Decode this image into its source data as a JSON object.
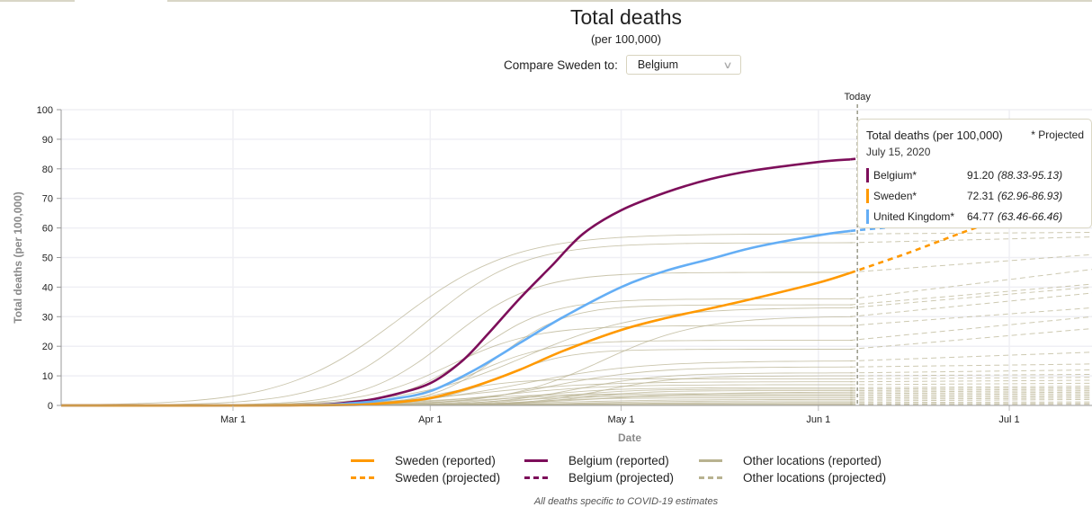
{
  "header": {
    "title": "Total deaths",
    "subtitle": "(per 100,000)",
    "compare_label": "Compare Sweden to:",
    "compare_selected": "Belgium",
    "chevron_icon": "chevron-down-icon"
  },
  "colors": {
    "sweden": "#ff9900",
    "belgium": "#7d0e5a",
    "uk": "#64aef5",
    "other": "#b8b290",
    "today_line": "#999988",
    "grid": "#efeff4"
  },
  "tooltip": {
    "title": "Total deaths (per 100,000)",
    "projected_note": "* Projected",
    "date": "July 15, 2020",
    "rows": [
      {
        "name": "Belgium*",
        "value": "91.20",
        "ci": "(88.33-95.13)",
        "color": "#7d0e5a"
      },
      {
        "name": "Sweden*",
        "value": "72.31",
        "ci": "(62.96-86.93)",
        "color": "#ff9900"
      },
      {
        "name": "United Kingdom*",
        "value": "64.77",
        "ci": "(63.46-66.46)",
        "color": "#64aef5"
      }
    ]
  },
  "legend": [
    {
      "label": "Sweden (reported)",
      "color": "#ff9900",
      "style": "solid"
    },
    {
      "label": "Belgium (reported)",
      "color": "#7d0e5a",
      "style": "solid"
    },
    {
      "label": "Other locations (reported)",
      "color": "#b8b290",
      "style": "solid"
    },
    {
      "label": "Sweden (projected)",
      "color": "#ff9900",
      "style": "dashed"
    },
    {
      "label": "Belgium (projected)",
      "color": "#7d0e5a",
      "style": "dashed"
    },
    {
      "label": "Other locations (projected)",
      "color": "#b8b290",
      "style": "dashed"
    }
  ],
  "footnote": "All deaths specific to COVID-19 estimates",
  "chart_data": {
    "type": "line",
    "title": "Total deaths",
    "subtitle": "(per 100,000)",
    "xlabel": "Date",
    "ylabel": "Total deaths (per 100,000)",
    "ylim": [
      0,
      100
    ],
    "yticks": [
      0,
      10,
      20,
      30,
      40,
      50,
      60,
      70,
      80,
      90,
      100
    ],
    "xlim": [
      "2020-02-03",
      "2020-07-14"
    ],
    "xticks": [
      {
        "date": "2020-03-01",
        "label": "Mar 1"
      },
      {
        "date": "2020-04-01",
        "label": "Apr 1"
      },
      {
        "date": "2020-05-01",
        "label": "May 1"
      },
      {
        "date": "2020-06-01",
        "label": "Jun 1"
      },
      {
        "date": "2020-07-01",
        "label": "Jul 1"
      }
    ],
    "grid": true,
    "today": {
      "date": "2020-06-06",
      "label": "Today"
    },
    "legend_position": "bottom",
    "series": [
      {
        "name": "Belgium",
        "key": "belgium",
        "reported": [
          [
            "2020-02-03",
            0
          ],
          [
            "2020-03-10",
            0.05
          ],
          [
            "2020-03-20",
            1.2
          ],
          [
            "2020-03-26",
            3.5
          ],
          [
            "2020-04-01",
            7.5
          ],
          [
            "2020-04-06",
            15
          ],
          [
            "2020-04-10",
            24
          ],
          [
            "2020-04-15",
            36
          ],
          [
            "2020-04-20",
            47
          ],
          [
            "2020-04-25",
            58
          ],
          [
            "2020-05-01",
            66
          ],
          [
            "2020-05-08",
            72
          ],
          [
            "2020-05-15",
            76.5
          ],
          [
            "2020-05-22",
            79.5
          ],
          [
            "2020-06-01",
            82.3
          ],
          [
            "2020-06-06",
            83.2
          ]
        ],
        "projected": [
          [
            "2020-06-06",
            83.2
          ],
          [
            "2020-06-20",
            86.5
          ],
          [
            "2020-07-01",
            89
          ],
          [
            "2020-07-15",
            91.2
          ]
        ]
      },
      {
        "name": "United Kingdom",
        "key": "uk",
        "reported": [
          [
            "2020-02-03",
            0
          ],
          [
            "2020-03-10",
            0.05
          ],
          [
            "2020-03-20",
            0.8
          ],
          [
            "2020-03-26",
            2.2
          ],
          [
            "2020-04-01",
            4.8
          ],
          [
            "2020-04-08",
            12
          ],
          [
            "2020-04-15",
            21
          ],
          [
            "2020-04-22",
            30
          ],
          [
            "2020-05-01",
            40
          ],
          [
            "2020-05-08",
            45.5
          ],
          [
            "2020-05-15",
            49.5
          ],
          [
            "2020-05-22",
            53.5
          ],
          [
            "2020-06-01",
            57.5
          ],
          [
            "2020-06-06",
            59
          ]
        ],
        "projected": [
          [
            "2020-06-06",
            59
          ],
          [
            "2020-06-20",
            61.8
          ],
          [
            "2020-07-01",
            63.4
          ],
          [
            "2020-07-15",
            64.77
          ]
        ]
      },
      {
        "name": "Sweden",
        "key": "sweden",
        "reported": [
          [
            "2020-02-03",
            0
          ],
          [
            "2020-03-15",
            0.05
          ],
          [
            "2020-03-25",
            0.8
          ],
          [
            "2020-04-01",
            2.5
          ],
          [
            "2020-04-08",
            6.5
          ],
          [
            "2020-04-15",
            12
          ],
          [
            "2020-04-22",
            18.5
          ],
          [
            "2020-05-01",
            25.5
          ],
          [
            "2020-05-08",
            29.5
          ],
          [
            "2020-05-15",
            32.8
          ],
          [
            "2020-05-22",
            36.2
          ],
          [
            "2020-06-01",
            41.5
          ],
          [
            "2020-06-06",
            44.8
          ]
        ],
        "projected": [
          [
            "2020-06-06",
            44.8
          ],
          [
            "2020-06-15",
            51.5
          ],
          [
            "2020-06-25",
            59.5
          ],
          [
            "2020-07-05",
            66.5
          ],
          [
            "2020-07-15",
            72.31
          ]
        ]
      }
    ],
    "other_locations": {
      "name": "Other locations",
      "final_reported_values": [
        58,
        55,
        45,
        36,
        34,
        33,
        30,
        27,
        22,
        19,
        15,
        13,
        11,
        10,
        9,
        8,
        7,
        6,
        5.5,
        5,
        4.5,
        4,
        3.5,
        3,
        2.5,
        2,
        1.5,
        1,
        0.6,
        0.3
      ],
      "projected_end_values": [
        58.5,
        57,
        51,
        46,
        41,
        40,
        38,
        33,
        30,
        26,
        18,
        14,
        12,
        10.5,
        9.5,
        8.5,
        7.5,
        6.5,
        6,
        5.5,
        5,
        4.5,
        4,
        3.5,
        3,
        2.5,
        2,
        1.2,
        0.7,
        0.4
      ]
    }
  }
}
